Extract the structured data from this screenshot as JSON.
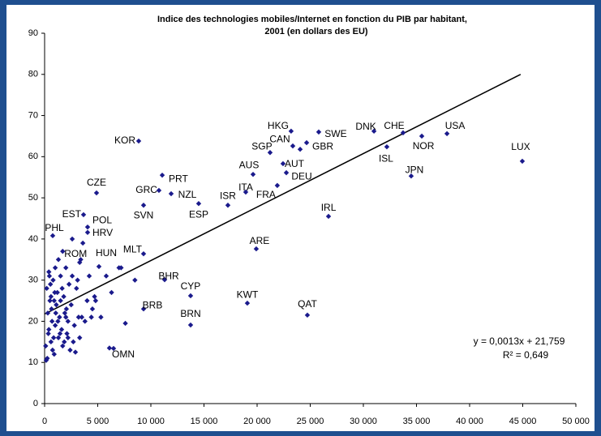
{
  "chart_data": {
    "type": "scatter",
    "title": [
      "Indice des technologies mobiles/Internet en fonction du PIB par habitant,",
      "2001 (en dollars des EU)"
    ],
    "xlim": [
      0,
      50000
    ],
    "ylim": [
      0,
      90
    ],
    "xticks": [
      0,
      {
        "value": 5000,
        "label": "5 000"
      },
      {
        "value": 10000,
        "label": "10 000"
      },
      {
        "value": 15000,
        "label": "15 000"
      },
      {
        "value": 20000,
        "label": "20 000"
      },
      {
        "value": 25000,
        "label": "25 000"
      },
      {
        "value": 30000,
        "label": "30 000"
      },
      {
        "value": 35000,
        "label": "35 000"
      },
      {
        "value": 40000,
        "label": "40 000"
      },
      {
        "value": 45000,
        "label": "45 000"
      },
      {
        "value": 50000,
        "label": "50 000"
      }
    ],
    "yticks": [
      0,
      10,
      20,
      30,
      40,
      50,
      60,
      70,
      80,
      90
    ],
    "grid": false,
    "series": [
      {
        "color": "#1a1a8c",
        "labels": [
          "KOR",
          "CZE",
          "EST",
          "PHL",
          "POL",
          "HRV",
          "ROM",
          "HUN",
          "MLT",
          "BHR",
          "CYP",
          "KWT",
          "QAT",
          "BRB",
          "BRN",
          "OMN",
          "ARE",
          "IRL",
          "GRC",
          "SVN",
          "PRT",
          "NZL",
          "ESP",
          "ISR",
          "ITA",
          "FRA",
          "AUS",
          "AUT",
          "DEU",
          "SGP",
          "CAN",
          "HKG",
          "GBR",
          "SWE",
          "DNK",
          "CHE",
          "ISL",
          "NOR",
          "USA",
          "JPN",
          "LUX"
        ],
        "x": [
          8855,
          4886,
          3664,
          763,
          4046,
          4046,
          3300,
          5115,
          9313,
          11298,
          13740,
          19080,
          24730,
          9313,
          13740,
          6490,
          19920,
          26720,
          10760,
          9313,
          11070,
          11910,
          14500,
          17250,
          18930,
          21900,
          19620,
          22440,
          22750,
          21220,
          23360,
          23200,
          24050,
          25800,
          31000,
          33740,
          32210,
          35500,
          37870,
          34500,
          44960
        ],
        "y": [
          63.8,
          51.2,
          45.9,
          40.8,
          42.9,
          41.6,
          34.3,
          33.3,
          36.4,
          30.1,
          26.2,
          24.4,
          21.5,
          23.0,
          19.1,
          13.4,
          37.6,
          45.5,
          51.8,
          48.2,
          55.5,
          51.0,
          48.6,
          48.2,
          51.4,
          53.0,
          55.7,
          58.3,
          56.1,
          61.0,
          62.6,
          66.2,
          61.8,
          66.0,
          66.2,
          65.8,
          62.4,
          65.0,
          65.6,
          55.3,
          58.9
        ]
      },
      {
        "color": "#1a1a8c",
        "x": [
          200,
          300,
          400,
          500,
          600,
          700,
          800,
          900,
          1000,
          1100,
          1200,
          1300,
          1400,
          1500,
          1600,
          1700,
          1800,
          1900,
          2000,
          2100,
          2200,
          2300,
          2400,
          2500,
          2600,
          2800,
          3000,
          3200,
          3400,
          3600,
          3800,
          4000,
          4200,
          4500,
          4800,
          5300,
          5800,
          6100,
          6300,
          7000,
          7200,
          7600,
          8500,
          100,
          150,
          250,
          350,
          450,
          550,
          650,
          750,
          850,
          950,
          1050,
          1250,
          1450,
          1650,
          1850,
          2050,
          2700,
          2900,
          3100,
          3300,
          400,
          600,
          1000,
          1300,
          2600,
          3500,
          4400,
          4700,
          1700,
          900,
          1500,
          2000,
          2200,
          24660
        ],
        "y": [
          28,
          22,
          18,
          25,
          15,
          20,
          30,
          12,
          19,
          24,
          27,
          16,
          21,
          31,
          18,
          14,
          26,
          22,
          33,
          17,
          20,
          29,
          13,
          24,
          31,
          19,
          28,
          21,
          35,
          39,
          20,
          25,
          31,
          23,
          25,
          21,
          31,
          13.5,
          27,
          33,
          33,
          19.5,
          30,
          14,
          10.5,
          11,
          17,
          31,
          29,
          23,
          13,
          16,
          27,
          22,
          20,
          17,
          28,
          15,
          23,
          15,
          12.5,
          30,
          16,
          32,
          26,
          33,
          35,
          40,
          21,
          21,
          26,
          37,
          25,
          25,
          21,
          16,
          63.4
        ]
      }
    ],
    "trendline": {
      "x": [
        0,
        44800
      ],
      "y": [
        21.759,
        80
      ]
    },
    "annotations": [
      "y = 0,0013x + 21,759",
      "R² = 0,649"
    ]
  }
}
